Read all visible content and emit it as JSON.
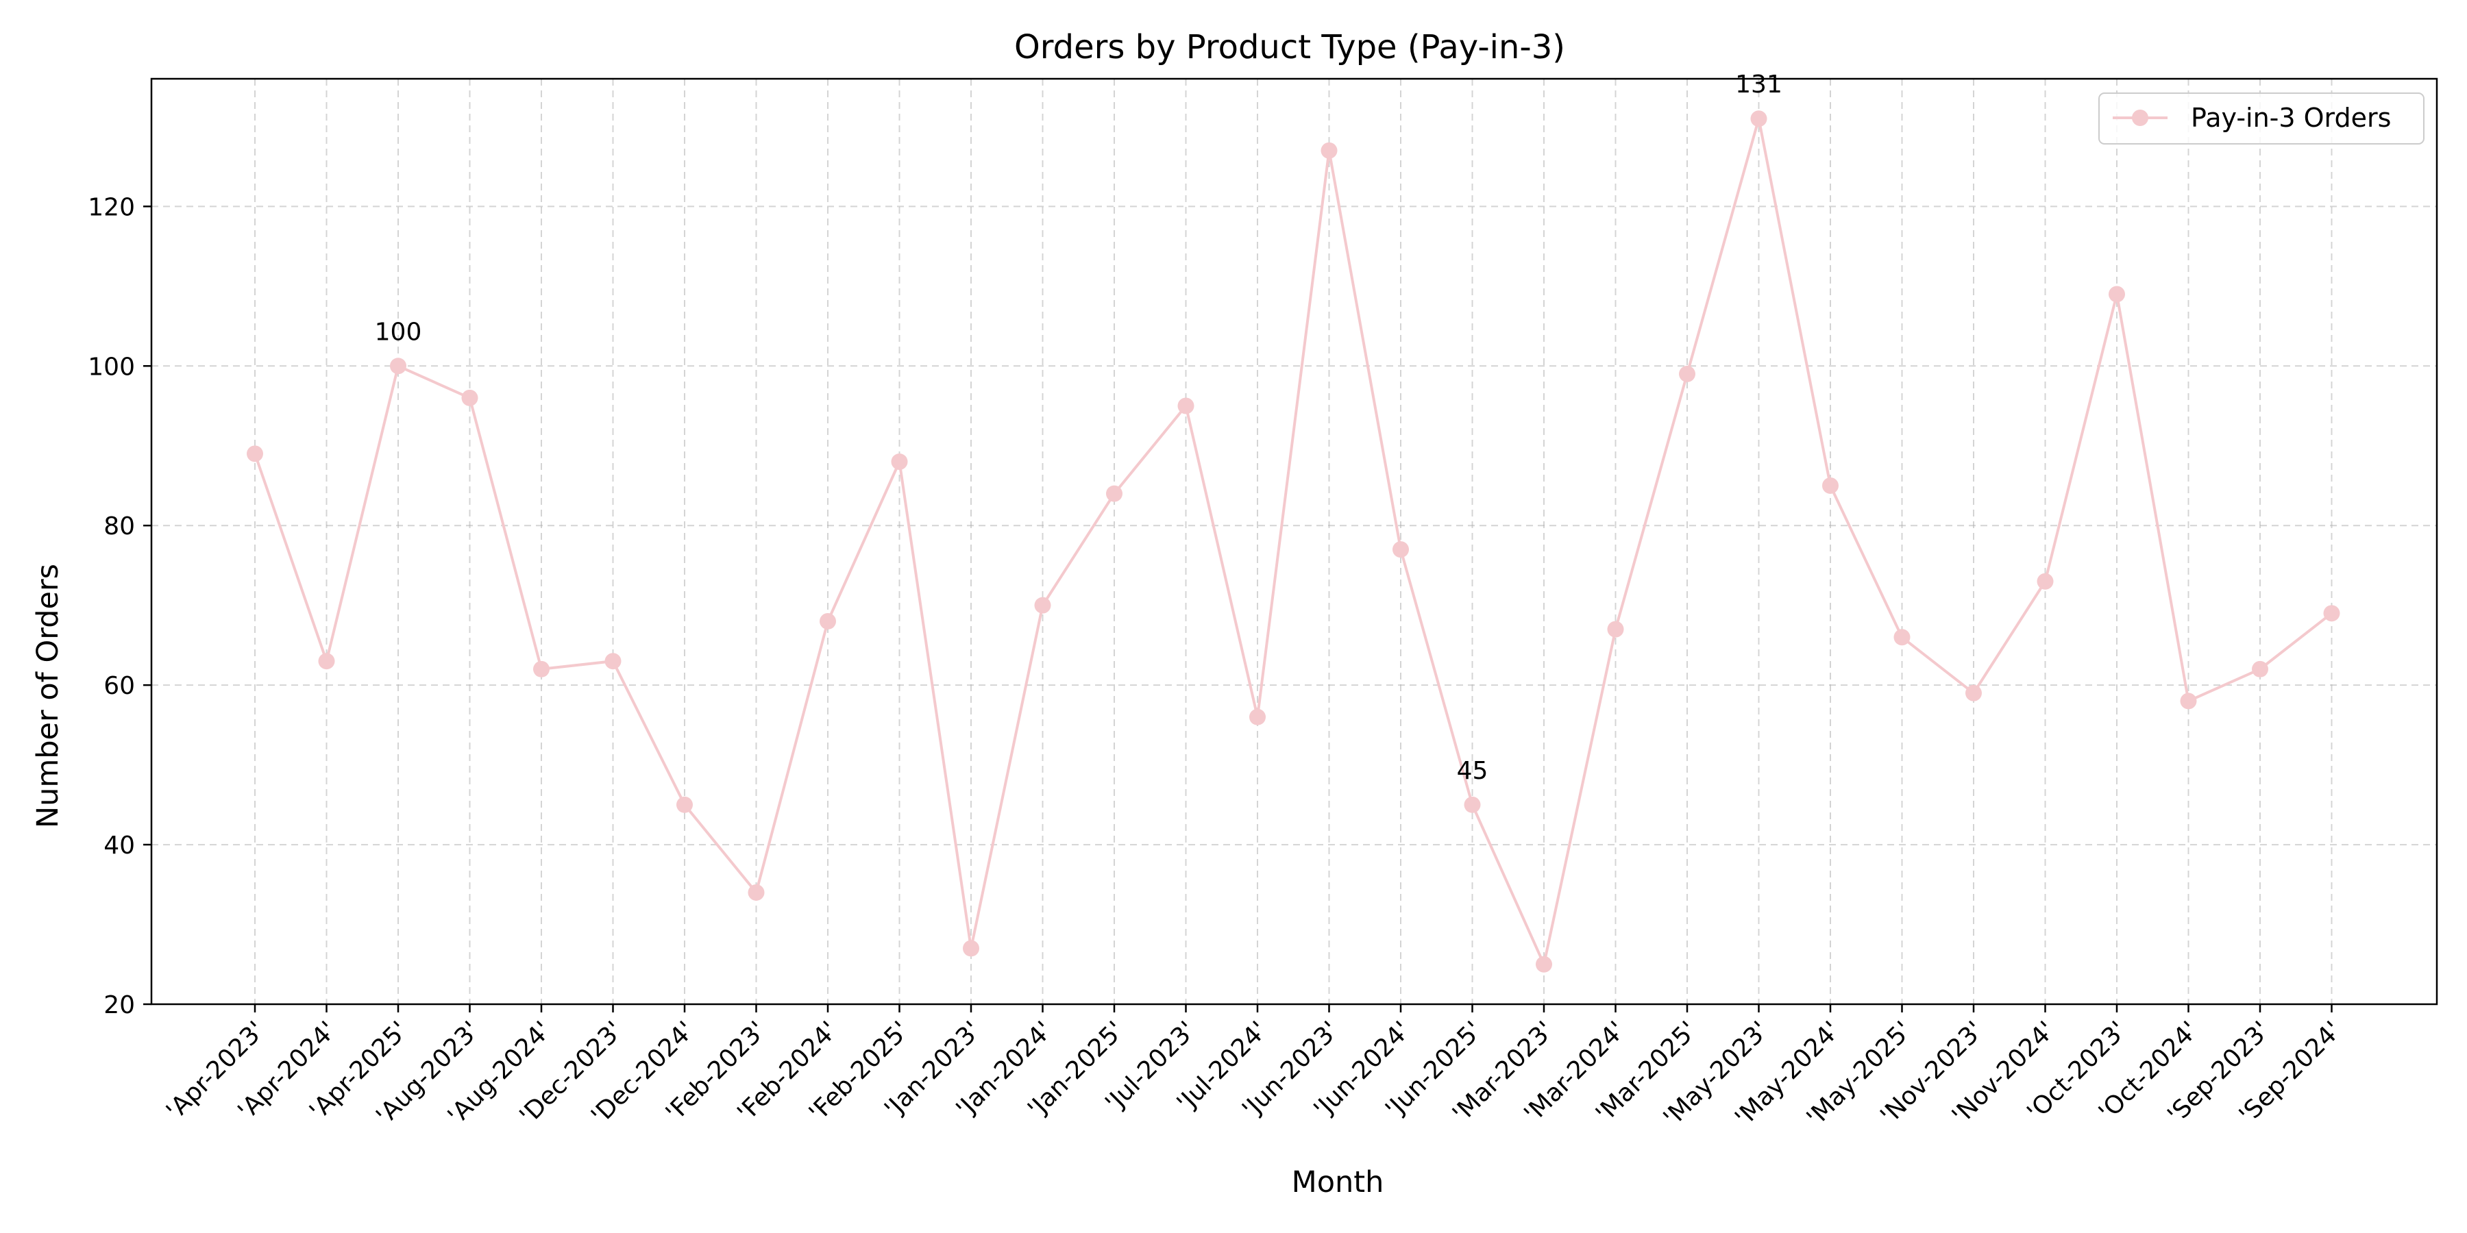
{
  "chart_data": {
    "type": "line",
    "title": "Orders by Product Type (Pay-in-3)",
    "xlabel": "Month",
    "ylabel": "Number of Orders",
    "ylim": [
      20,
      136
    ],
    "yticks": [
      20,
      40,
      60,
      80,
      100,
      120
    ],
    "grid": true,
    "legend_position": "top-right",
    "categories": [
      "'Apr-2023'",
      "'Apr-2024'",
      "'Apr-2025'",
      "'Aug-2023'",
      "'Aug-2024'",
      "'Dec-2023'",
      "'Dec-2024'",
      "'Feb-2023'",
      "'Feb-2024'",
      "'Feb-2025'",
      "'Jan-2023'",
      "'Jan-2024'",
      "'Jan-2025'",
      "'Jul-2023'",
      "'Jul-2024'",
      "'Jun-2023'",
      "'Jun-2024'",
      "'Jun-2025'",
      "'Mar-2023'",
      "'Mar-2024'",
      "'Mar-2025'",
      "'May-2023'",
      "'May-2024'",
      "'May-2025'",
      "'Nov-2023'",
      "'Nov-2024'",
      "'Oct-2023'",
      "'Oct-2024'",
      "'Sep-2023'",
      "'Sep-2024'"
    ],
    "series": [
      {
        "name": "Pay-in-3 Orders",
        "color": "#f4c9cd",
        "values": [
          89,
          63,
          100,
          96,
          62,
          63,
          45,
          34,
          68,
          88,
          27,
          70,
          84,
          95,
          56,
          127,
          77,
          45,
          25,
          67,
          99,
          131,
          85,
          66,
          59,
          73,
          109,
          58,
          62,
          69
        ]
      }
    ],
    "annotations": [
      {
        "category": "'Apr-2025'",
        "value": 100,
        "text": "100"
      },
      {
        "category": "'Jun-2025'",
        "value": 45,
        "text": "45"
      },
      {
        "category": "'May-2023'",
        "value": 131,
        "text": "131"
      }
    ]
  }
}
